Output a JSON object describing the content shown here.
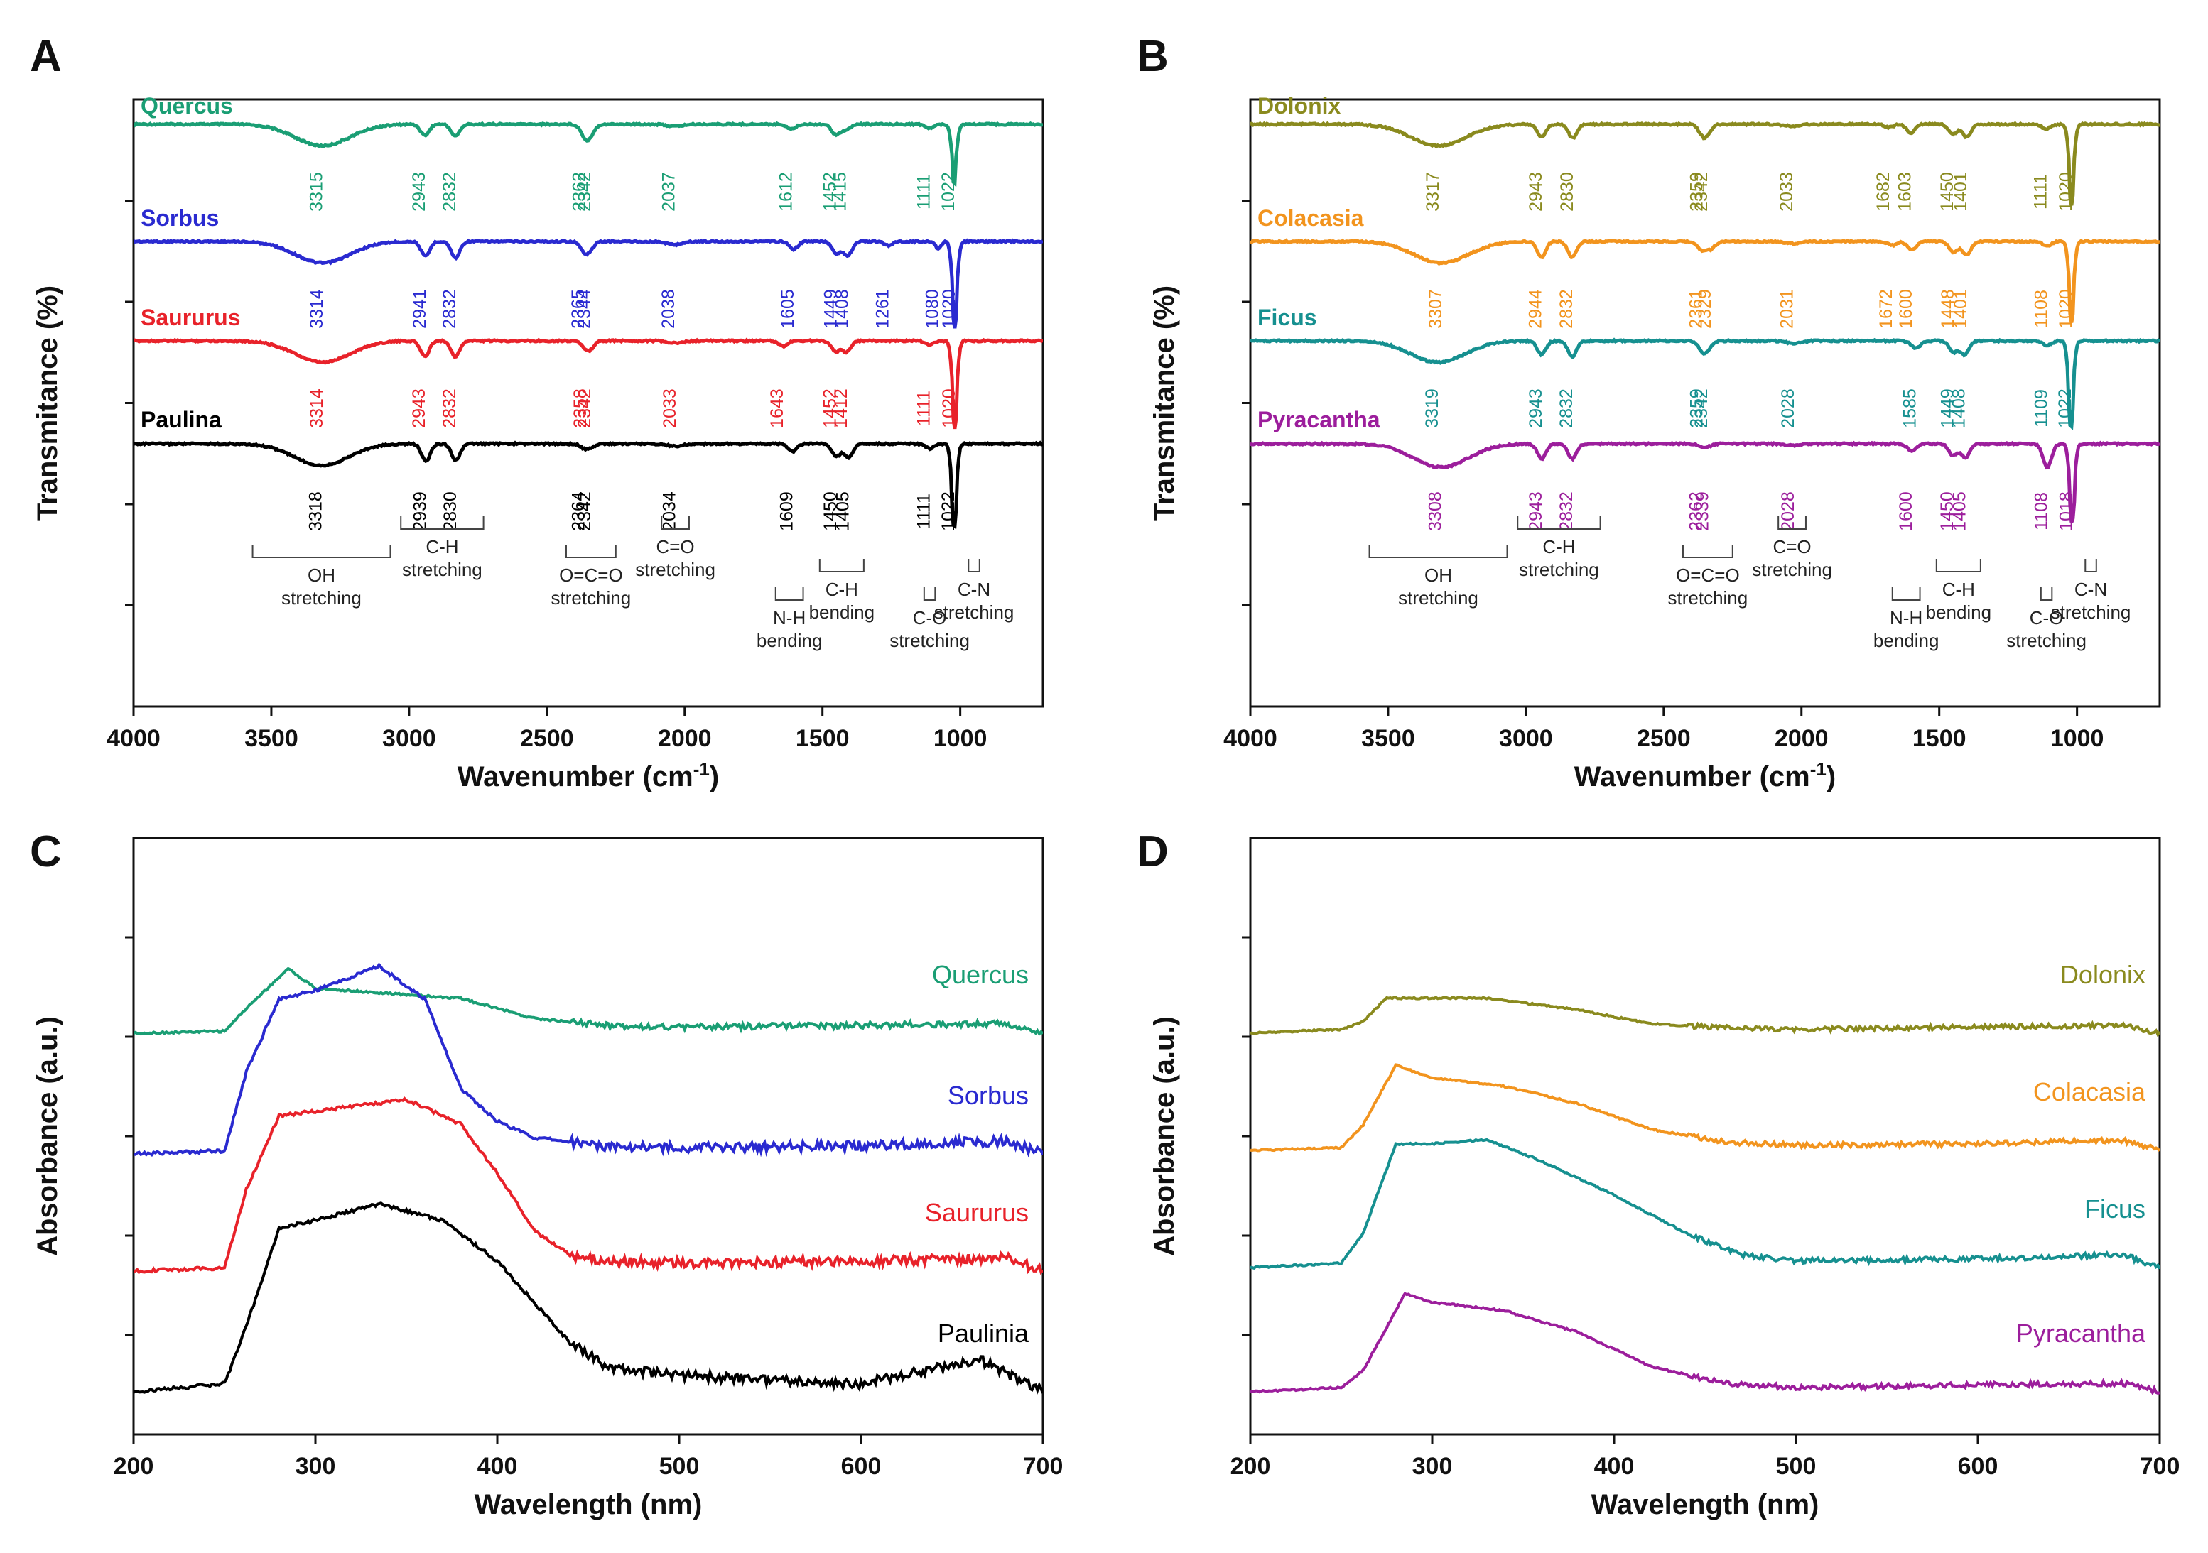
{
  "chart_data": [
    {
      "panel": "A",
      "type": "line",
      "xlabel": "Wavenumber (cm-1)",
      "xlabel_main": "Wavenumber (cm",
      "xlabel_sup": "-1",
      "xlabel_close": ")",
      "ylabel": "Transmitance (%)",
      "xlim": [
        4000,
        700
      ],
      "xticks": [
        4000,
        3500,
        3000,
        2500,
        2000,
        1500,
        1000
      ],
      "series": [
        {
          "name": "Quercus",
          "color": "#1a9e74",
          "peaks": [
            3315,
            2943,
            2832,
            2362,
            2342,
            2037,
            1612,
            1452,
            1415,
            1111,
            1022
          ],
          "depths": [
            0.55,
            0.28,
            0.3,
            0.28,
            0.22,
            0.05,
            0.12,
            0.25,
            0.15,
            0.1,
            1.05
          ]
        },
        {
          "name": "Sorbus",
          "color": "#2a2ad0",
          "peaks": [
            3314,
            2941,
            2832,
            2365,
            2344,
            2038,
            1605,
            1449,
            1408,
            1261,
            1080,
            1020
          ],
          "depths": [
            0.55,
            0.38,
            0.42,
            0.22,
            0.18,
            0.08,
            0.2,
            0.3,
            0.35,
            0.1,
            0.18,
            1.55
          ]
        },
        {
          "name": "Saururus",
          "color": "#e8222a",
          "peaks": [
            3314,
            2943,
            2832,
            2358,
            2342,
            2033,
            1643,
            1452,
            1412,
            1111,
            1020
          ],
          "depths": [
            0.55,
            0.4,
            0.4,
            0.16,
            0.14,
            0.06,
            0.14,
            0.26,
            0.28,
            0.1,
            1.55
          ]
        },
        {
          "name": "Paulina",
          "color": "#000000",
          "peaks": [
            3318,
            2939,
            2830,
            2364,
            2342,
            2034,
            1609,
            1450,
            1405,
            1111,
            1022
          ],
          "depths": [
            0.55,
            0.45,
            0.42,
            0.1,
            0.08,
            0.06,
            0.2,
            0.32,
            0.35,
            0.12,
            1.5
          ]
        }
      ],
      "assignments": [
        "OH stretching",
        "C-H stretching",
        "O=C=O stretching",
        "C=O stretching",
        "N-H bending",
        "C-H bending",
        "C-O stretching",
        "C-N stretching"
      ],
      "assignment_peaks": [
        "3318",
        "2939",
        "2830",
        "2364",
        "2342",
        "2034",
        "1609",
        "1450",
        "1405",
        "1111",
        "1022"
      ]
    },
    {
      "panel": "B",
      "type": "line",
      "xlabel": "Wavenumber (cm-1)",
      "xlabel_main": "Wavenumber (cm",
      "xlabel_sup": "-1",
      "xlabel_close": ")",
      "ylabel": "Transmitance (%)",
      "xlim": [
        4000,
        700
      ],
      "xticks": [
        4000,
        3500,
        3000,
        2500,
        2000,
        1500,
        1000
      ],
      "series": [
        {
          "name": "Dolonix",
          "color": "#8a8a1e",
          "peaks": [
            3317,
            2943,
            2830,
            2359,
            2342,
            2033,
            1682,
            1603,
            1450,
            1401,
            1111,
            1020
          ],
          "depths": [
            0.55,
            0.32,
            0.35,
            0.22,
            0.18,
            0.05,
            0.08,
            0.22,
            0.25,
            0.32,
            0.12,
            1.45
          ]
        },
        {
          "name": "Colacasia",
          "color": "#f2941e",
          "peaks": [
            3307,
            2944,
            2832,
            2361,
            2329,
            2031,
            1672,
            1600,
            1448,
            1401,
            1108,
            1020
          ],
          "depths": [
            0.55,
            0.4,
            0.4,
            0.22,
            0.18,
            0.05,
            0.1,
            0.22,
            0.28,
            0.35,
            0.12,
            1.45
          ]
        },
        {
          "name": "Ficus",
          "color": "#169090",
          "peaks": [
            3319,
            2943,
            2832,
            2359,
            2342,
            2028,
            1585,
            1449,
            1408,
            1109,
            1022
          ],
          "depths": [
            0.55,
            0.35,
            0.4,
            0.22,
            0.16,
            0.06,
            0.2,
            0.28,
            0.35,
            0.12,
            1.55
          ]
        },
        {
          "name": "Pyracantha",
          "color": "#9c1e9c",
          "peaks": [
            3308,
            2943,
            2832,
            2362,
            2339,
            2028,
            1600,
            1450,
            1405,
            1108,
            1018
          ],
          "depths": [
            0.6,
            0.38,
            0.38,
            0.06,
            0.05,
            0.04,
            0.18,
            0.3,
            0.35,
            0.6,
            1.4
          ]
        }
      ],
      "assignments": [
        "OH stretching",
        "C-H stretching",
        "O=C=O stretching",
        "C=O stretching",
        "N-H bending",
        "C-H bending",
        "C-O stretching",
        "C-N stretching"
      ],
      "assignment_peaks": [
        "3308",
        "2943",
        "2832",
        "2362",
        "2339",
        "2028",
        "1600",
        "1450",
        "1405",
        "1108",
        "1018"
      ]
    },
    {
      "panel": "C",
      "type": "line",
      "xlabel": "Wavelength (nm)",
      "ylabel": "Absorbance (a.u.)",
      "xlim": [
        200,
        700
      ],
      "xticks": [
        200,
        300,
        400,
        500,
        600,
        700
      ],
      "series": [
        {
          "name": "Quercus",
          "color": "#1a9e74",
          "x": [
            200,
            250,
            262,
            285,
            300,
            340,
            380,
            420,
            460,
            500,
            600,
            680,
            700
          ],
          "y": [
            0.0,
            0.02,
            0.25,
            0.65,
            0.45,
            0.4,
            0.35,
            0.15,
            0.08,
            0.06,
            0.08,
            0.1,
            0.0
          ]
        },
        {
          "name": "Sorbus",
          "color": "#2a2ad0",
          "x": [
            200,
            250,
            262,
            280,
            300,
            335,
            360,
            380,
            400,
            420,
            460,
            500,
            600,
            680,
            700
          ],
          "y": [
            0.0,
            0.02,
            0.5,
            0.95,
            1.0,
            1.15,
            0.95,
            0.4,
            0.2,
            0.1,
            0.05,
            0.04,
            0.05,
            0.08,
            0.0
          ]
        },
        {
          "name": "Saururus",
          "color": "#e8222a",
          "x": [
            200,
            250,
            262,
            280,
            300,
            350,
            380,
            400,
            420,
            440,
            460,
            500,
            600,
            680,
            700
          ],
          "y": [
            0.0,
            0.02,
            0.5,
            0.95,
            0.98,
            1.05,
            0.9,
            0.6,
            0.25,
            0.1,
            0.06,
            0.05,
            0.06,
            0.08,
            0.0
          ]
        },
        {
          "name": "Paulinia",
          "color": "#000000",
          "x": [
            200,
            250,
            262,
            280,
            300,
            335,
            370,
            400,
            420,
            440,
            460,
            500,
            600,
            665,
            700
          ],
          "y": [
            0.0,
            0.05,
            0.4,
            1.0,
            1.05,
            1.15,
            1.05,
            0.8,
            0.55,
            0.3,
            0.15,
            0.1,
            0.05,
            0.2,
            0.0
          ]
        }
      ]
    },
    {
      "panel": "D",
      "type": "line",
      "xlabel": "Wavelength (nm)",
      "ylabel": "Absorbance (a.u.)",
      "xlim": [
        200,
        700
      ],
      "xticks": [
        200,
        300,
        400,
        500,
        600,
        700
      ],
      "series": [
        {
          "name": "Dolonix",
          "color": "#8a8a1e",
          "x": [
            200,
            250,
            262,
            275,
            330,
            380,
            420,
            470,
            500,
            600,
            680,
            700
          ],
          "y": [
            0.0,
            0.05,
            0.15,
            0.45,
            0.45,
            0.3,
            0.12,
            0.06,
            0.05,
            0.08,
            0.1,
            0.0
          ]
        },
        {
          "name": "Colacasia",
          "color": "#f2941e",
          "x": [
            200,
            250,
            262,
            280,
            300,
            340,
            380,
            420,
            460,
            500,
            600,
            680,
            700
          ],
          "y": [
            0.0,
            0.03,
            0.3,
            1.0,
            0.85,
            0.75,
            0.55,
            0.25,
            0.1,
            0.06,
            0.08,
            0.12,
            0.0
          ]
        },
        {
          "name": "Ficus",
          "color": "#169090",
          "x": [
            200,
            250,
            262,
            280,
            300,
            330,
            360,
            400,
            440,
            470,
            500,
            600,
            680,
            700
          ],
          "y": [
            0.0,
            0.05,
            0.4,
            1.45,
            1.45,
            1.5,
            1.25,
            0.85,
            0.4,
            0.15,
            0.08,
            0.1,
            0.15,
            0.0
          ]
        },
        {
          "name": "Pyracantha",
          "color": "#9c1e9c",
          "x": [
            200,
            250,
            262,
            285,
            300,
            340,
            380,
            420,
            460,
            500,
            600,
            680,
            700
          ],
          "y": [
            0.0,
            0.05,
            0.25,
            1.15,
            1.05,
            0.95,
            0.7,
            0.3,
            0.1,
            0.05,
            0.08,
            0.1,
            0.0
          ]
        }
      ]
    }
  ]
}
